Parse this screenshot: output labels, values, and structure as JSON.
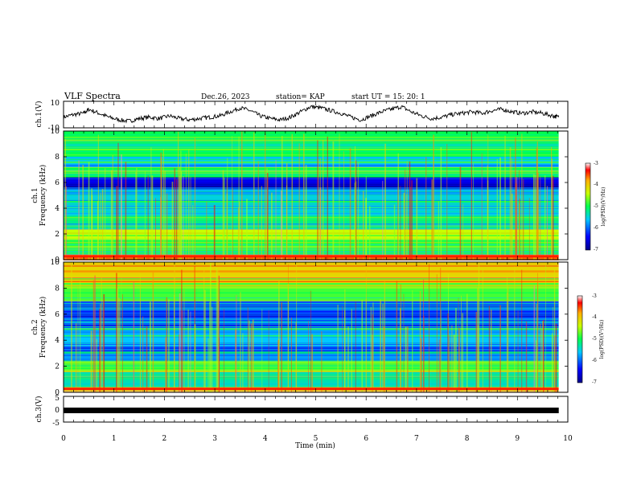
{
  "header": {
    "title": "VLF Spectra",
    "date": "Dec.26, 2023",
    "station": "station= KAP",
    "start": "start  UT  =   15: 20: 1"
  },
  "chart_data": [
    {
      "type": "line",
      "panel": "ch1-waveform",
      "ylabel": "ch.1(V)",
      "ylim": [
        -10,
        10
      ],
      "yticks": [
        "10",
        "-10"
      ],
      "x": [
        0,
        0.2,
        0.4,
        0.5,
        0.7,
        0.9,
        1.1,
        1.3,
        1.5,
        1.7,
        1.9,
        2.1,
        2.3,
        2.5,
        2.7,
        2.9,
        3.1,
        3.3,
        3.5,
        3.7,
        3.9,
        4.1,
        4.3,
        4.5,
        4.7,
        4.9,
        5.1,
        5.3,
        5.5,
        5.7,
        5.9,
        6.1,
        6.3,
        6.5,
        6.7,
        6.9,
        7.1,
        7.3,
        7.5,
        7.7,
        7.9,
        8.1,
        8.3,
        8.5,
        8.7,
        8.9,
        9.1,
        9.3,
        9.5,
        9.7,
        9.82
      ],
      "y": [
        -2,
        0,
        1,
        4,
        1,
        -2,
        -4,
        -5,
        -3,
        -2,
        -3,
        -1,
        -3,
        -4,
        -3,
        -2,
        -1,
        2,
        5,
        3,
        -1,
        -3,
        -4,
        -2,
        2,
        6,
        5,
        3,
        1,
        -2,
        -4,
        -1,
        2,
        4,
        6,
        2,
        -1,
        -3,
        -2,
        0,
        1,
        2,
        1,
        3,
        4,
        2,
        1,
        2,
        1,
        -1,
        -2
      ]
    },
    {
      "type": "heatmap",
      "panel": "ch1-spectrogram",
      "ylabel": "ch.1\nFrequency (kHz)",
      "xlim": [
        0,
        10
      ],
      "ylim": [
        0,
        10
      ],
      "yticks": [
        "0",
        "2",
        "4",
        "6",
        "8",
        "10"
      ],
      "colorbar": {
        "label": "log(PSD)(V²/Hz)",
        "range": [
          -7,
          -3
        ],
        "ticks": [
          "-3",
          "-4",
          "-5",
          "-6",
          "-7"
        ]
      },
      "bands_khz": [
        {
          "f0": 0.0,
          "f1": 0.4,
          "level": -3.6
        },
        {
          "f0": 0.4,
          "f1": 1.6,
          "level": -4.9
        },
        {
          "f0": 1.6,
          "f1": 2.4,
          "level": -4.4
        },
        {
          "f0": 2.4,
          "f1": 3.4,
          "level": -5.2
        },
        {
          "f0": 3.4,
          "f1": 5.0,
          "level": -5.5
        },
        {
          "f0": 5.0,
          "f1": 5.5,
          "level": -5.9
        },
        {
          "f0": 5.5,
          "f1": 6.4,
          "level": -6.5
        },
        {
          "f0": 6.4,
          "f1": 7.2,
          "level": -5.0
        },
        {
          "f0": 7.2,
          "f1": 8.0,
          "level": -5.6
        },
        {
          "f0": 8.0,
          "f1": 10.0,
          "level": -5.0
        }
      ]
    },
    {
      "type": "heatmap",
      "panel": "ch2-spectrogram",
      "ylabel": "ch.2\nFrequency (kHz)",
      "xlim": [
        0,
        10
      ],
      "ylim": [
        0,
        10
      ],
      "yticks": [
        "0",
        "2",
        "4",
        "6",
        "8",
        "10"
      ],
      "colorbar": {
        "label": "log(PSD)(V²/Hz)",
        "range": [
          -7,
          -3
        ],
        "ticks": [
          "-3",
          "-4",
          "-5",
          "-6",
          "-7"
        ]
      },
      "bands_khz": [
        {
          "f0": 0.0,
          "f1": 0.4,
          "level": -3.8
        },
        {
          "f0": 0.4,
          "f1": 1.6,
          "level": -5.3
        },
        {
          "f0": 1.6,
          "f1": 2.4,
          "level": -4.8
        },
        {
          "f0": 2.4,
          "f1": 3.6,
          "level": -5.9
        },
        {
          "f0": 3.6,
          "f1": 5.0,
          "level": -5.6
        },
        {
          "f0": 5.0,
          "f1": 7.0,
          "level": -6.1
        },
        {
          "f0": 7.0,
          "f1": 8.4,
          "level": -4.8
        },
        {
          "f0": 8.4,
          "f1": 10.0,
          "level": -4.1
        }
      ]
    },
    {
      "type": "line",
      "panel": "ch3-waveform",
      "ylabel": "ch.3(V)",
      "ylim": [
        -5,
        5
      ],
      "yticks": [
        "5",
        "0",
        "-5"
      ],
      "x": [
        0,
        9.82
      ],
      "y": [
        0,
        0
      ]
    }
  ],
  "xaxis": {
    "label": "Time (min)",
    "ticks": [
      "0",
      "1",
      "2",
      "3",
      "4",
      "5",
      "6",
      "7",
      "8",
      "9",
      "10"
    ],
    "xlim": [
      0,
      10
    ]
  }
}
